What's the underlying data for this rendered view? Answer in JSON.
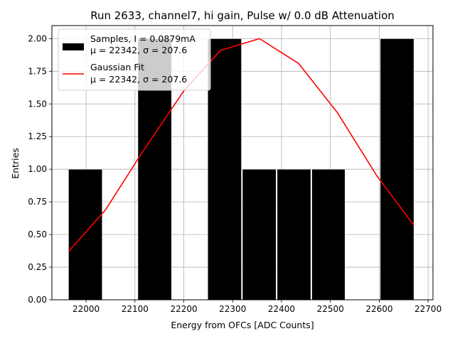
{
  "chart_data": {
    "type": "bar",
    "title": "Run 2633, channel7, hi gain, Pulse w/ 0.0 dB Attenuation",
    "xlabel": "Energy from OFCs [ADC Counts]",
    "ylabel": "Entries",
    "xlim": [
      21930,
      22710
    ],
    "ylim": [
      0,
      2.1
    ],
    "grid": true,
    "legend_position": "top-left",
    "x_ticks": [
      22000,
      22100,
      22200,
      22300,
      22400,
      22500,
      22600,
      22700
    ],
    "y_ticks": [
      0.0,
      0.25,
      0.5,
      0.75,
      1.0,
      1.25,
      1.5,
      1.75,
      2.0
    ],
    "y_tick_labels": [
      "0.00",
      "0.25",
      "0.50",
      "0.75",
      "1.00",
      "1.25",
      "1.50",
      "1.75",
      "2.00"
    ],
    "bar_color": "#000000",
    "fit_color": "#ff0000",
    "histogram": {
      "name": "Samples, I = 0.0879mA",
      "stats": "μ = 22342, σ = 207.6",
      "bins": [
        {
          "x0": 21964,
          "x1": 22033,
          "count": 1
        },
        {
          "x0": 22106,
          "x1": 22175,
          "count": 2
        },
        {
          "x0": 22249,
          "x1": 22318,
          "count": 2
        },
        {
          "x0": 22320,
          "x1": 22389,
          "count": 1
        },
        {
          "x0": 22391,
          "x1": 22460,
          "count": 1
        },
        {
          "x0": 22462,
          "x1": 22530,
          "count": 1
        },
        {
          "x0": 22602,
          "x1": 22671,
          "count": 2
        }
      ]
    },
    "fit": {
      "name": "Gaussian Fit",
      "stats": "μ = 22342, σ = 207.6",
      "x": [
        21964,
        22040,
        22115,
        22200,
        22275,
        22355,
        22435,
        22515,
        22595,
        22671
      ],
      "y": [
        0.37,
        0.69,
        1.13,
        1.6,
        1.91,
        2.0,
        1.81,
        1.43,
        0.95,
        0.57
      ]
    }
  }
}
